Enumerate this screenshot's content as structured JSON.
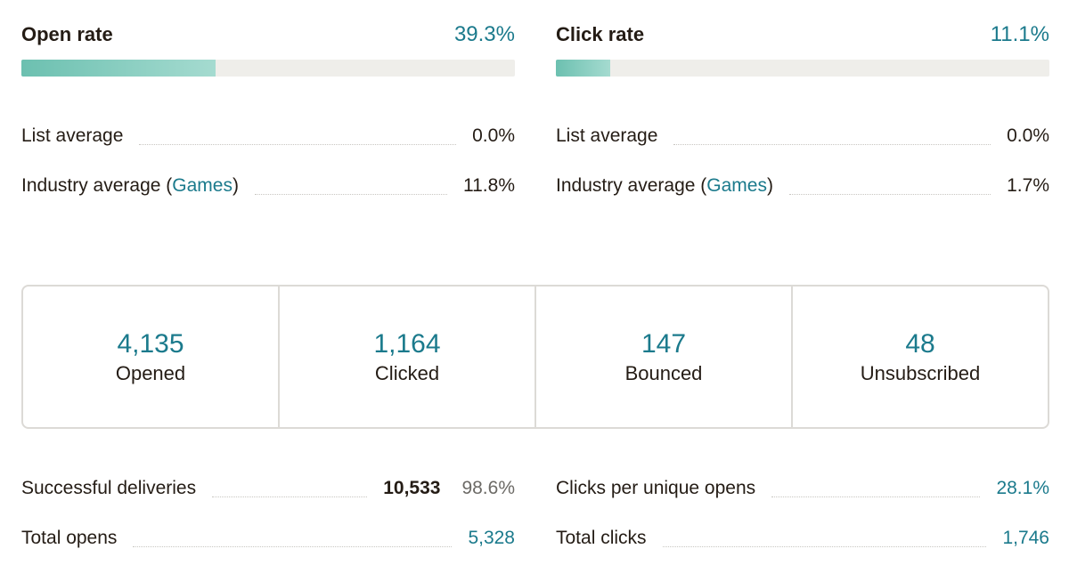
{
  "open_rate": {
    "title": "Open rate",
    "value": "39.3%",
    "progress_pct": 39.3,
    "list_average_label": "List average",
    "list_average_value": "0.0%",
    "industry_label_prefix": "Industry average (",
    "industry_link": "Games",
    "industry_label_suffix": ")",
    "industry_value": "11.8%"
  },
  "click_rate": {
    "title": "Click rate",
    "value": "11.1%",
    "progress_pct": 11.1,
    "list_average_label": "List average",
    "list_average_value": "0.0%",
    "industry_label_prefix": "Industry average (",
    "industry_link": "Games",
    "industry_label_suffix": ")",
    "industry_value": "1.7%"
  },
  "counts": [
    {
      "number": "4,135",
      "label": "Opened"
    },
    {
      "number": "1,164",
      "label": "Clicked"
    },
    {
      "number": "147",
      "label": "Bounced"
    },
    {
      "number": "48",
      "label": "Unsubscribed"
    }
  ],
  "details_left": {
    "deliveries_label": "Successful deliveries",
    "deliveries_value": "10,533",
    "deliveries_pct": "98.6%",
    "total_opens_label": "Total opens",
    "total_opens_value": "5,328"
  },
  "details_right": {
    "clicks_per_open_label": "Clicks per unique opens",
    "clicks_per_open_value": "28.1%",
    "total_clicks_label": "Total clicks",
    "total_clicks_value": "1,746"
  },
  "colors": {
    "accent": "#1b7a8c",
    "bar_fill": "#6cc0b0",
    "bar_track": "#efeeea",
    "text": "#241c15"
  }
}
